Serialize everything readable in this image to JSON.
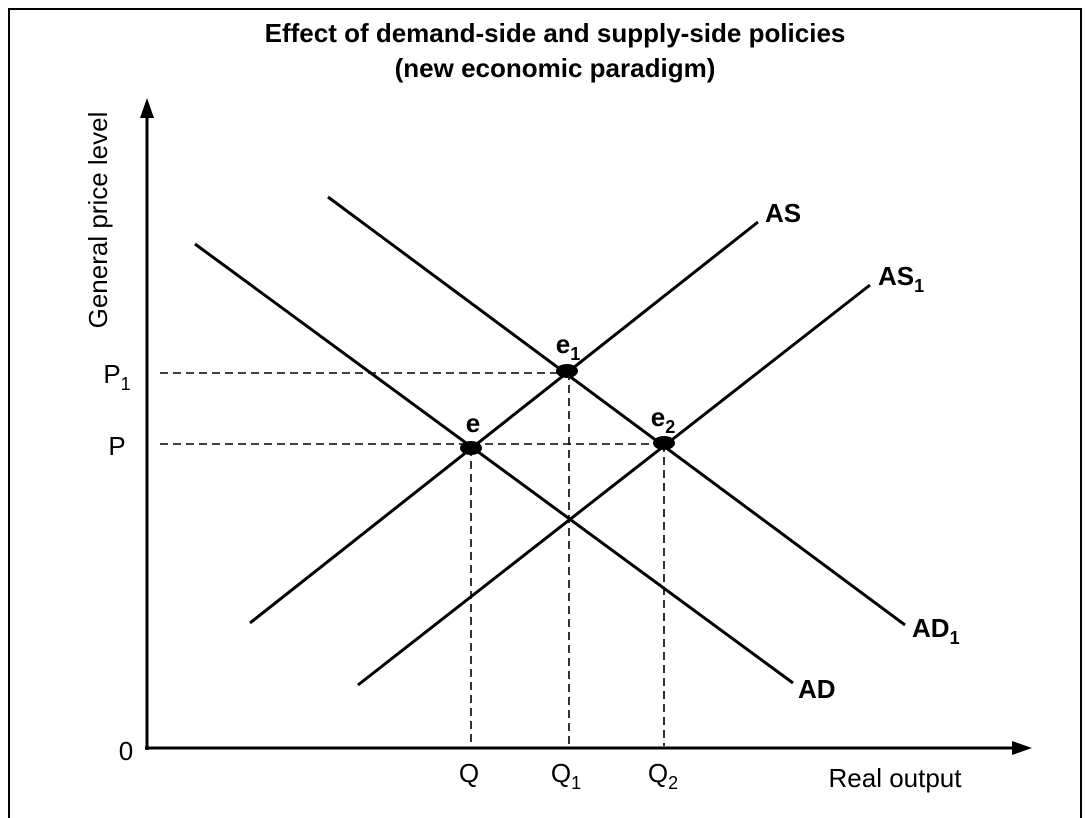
{
  "title": {
    "line1": "Effect of demand-side and supply-side policies",
    "line2": "(new economic paradigm)"
  },
  "axes": {
    "y_label": "General price level",
    "x_label": "Real output",
    "origin": "0"
  },
  "curves": [
    {
      "text": "AS",
      "sub": ""
    },
    {
      "text": "AS",
      "sub": "1"
    },
    {
      "text": "AD",
      "sub": ""
    },
    {
      "text": "AD",
      "sub": "1"
    }
  ],
  "points": [
    {
      "text": "e",
      "sub": ""
    },
    {
      "text": "e",
      "sub": "1"
    },
    {
      "text": "e",
      "sub": "2"
    }
  ],
  "y_ticks": [
    {
      "text": "P",
      "sub": "1"
    },
    {
      "text": "P",
      "sub": ""
    }
  ],
  "x_ticks": [
    {
      "text": "Q",
      "sub": ""
    },
    {
      "text": "Q",
      "sub": "1"
    },
    {
      "text": "Q",
      "sub": "2"
    }
  ]
}
